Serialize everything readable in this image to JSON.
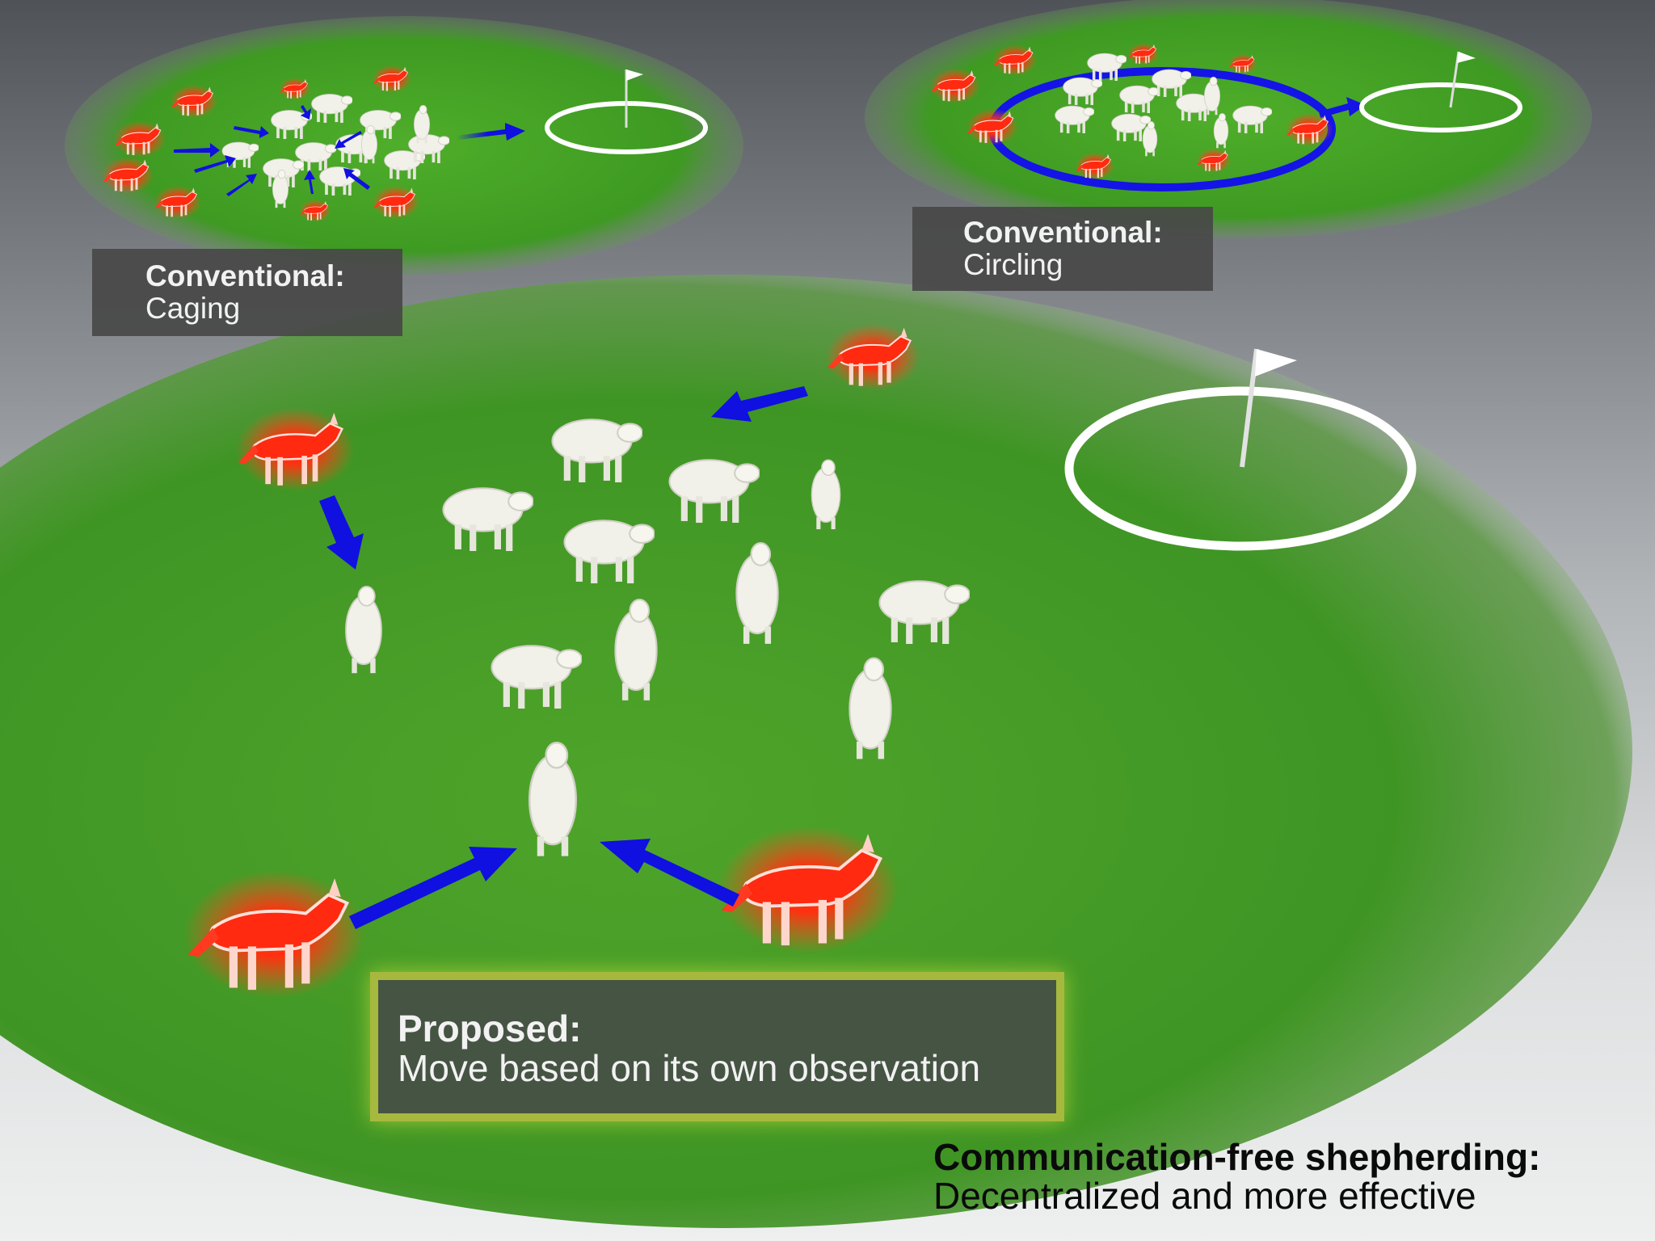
{
  "labels": {
    "caging": {
      "heading": "Conventional:",
      "sub": "Caging"
    },
    "circling": {
      "heading": "Conventional:",
      "sub": "Circling"
    },
    "proposed": {
      "heading": "Proposed:",
      "sub": "Move based on its own observation"
    },
    "footer": {
      "heading": "Communication-free shepherding:",
      "sub": "Decentralized and more effective"
    }
  },
  "colors": {
    "grass": "#4fa52a",
    "dog": "#ff2a10",
    "sheep": "#f1f1ea",
    "arrow": "#1010e0",
    "goal_ring": "#ffffff"
  },
  "icons": [
    "dog-icon",
    "sheep-icon",
    "flag-icon",
    "arrow-icon",
    "goal-ring-icon"
  ]
}
